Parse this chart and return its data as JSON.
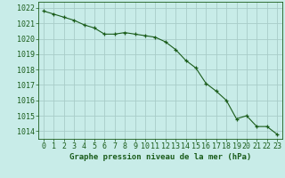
{
  "x": [
    0,
    1,
    2,
    3,
    4,
    5,
    6,
    7,
    8,
    9,
    10,
    11,
    12,
    13,
    14,
    15,
    16,
    17,
    18,
    19,
    20,
    21,
    22,
    23
  ],
  "y": [
    1021.8,
    1021.6,
    1021.4,
    1021.2,
    1020.9,
    1020.7,
    1020.3,
    1020.3,
    1020.4,
    1020.3,
    1020.2,
    1020.1,
    1019.8,
    1019.3,
    1018.6,
    1018.1,
    1017.1,
    1016.6,
    1016.0,
    1014.8,
    1015.0,
    1014.3,
    1014.3,
    1013.8
  ],
  "line_color": "#1a5c1a",
  "marker_color": "#1a5c1a",
  "bg_color": "#c8ece8",
  "grid_color": "#a8ccc8",
  "text_color": "#1a5c1a",
  "xlabel": "Graphe pression niveau de la mer (hPa)",
  "ylim": [
    1013.5,
    1022.4
  ],
  "yticks": [
    1014,
    1015,
    1016,
    1017,
    1018,
    1019,
    1020,
    1021,
    1022
  ],
  "xticks": [
    0,
    1,
    2,
    3,
    4,
    5,
    6,
    7,
    8,
    9,
    10,
    11,
    12,
    13,
    14,
    15,
    16,
    17,
    18,
    19,
    20,
    21,
    22,
    23
  ],
  "title_fontsize": 6.5,
  "tick_fontsize": 6.0,
  "marker_size": 3.0,
  "line_width": 0.8
}
